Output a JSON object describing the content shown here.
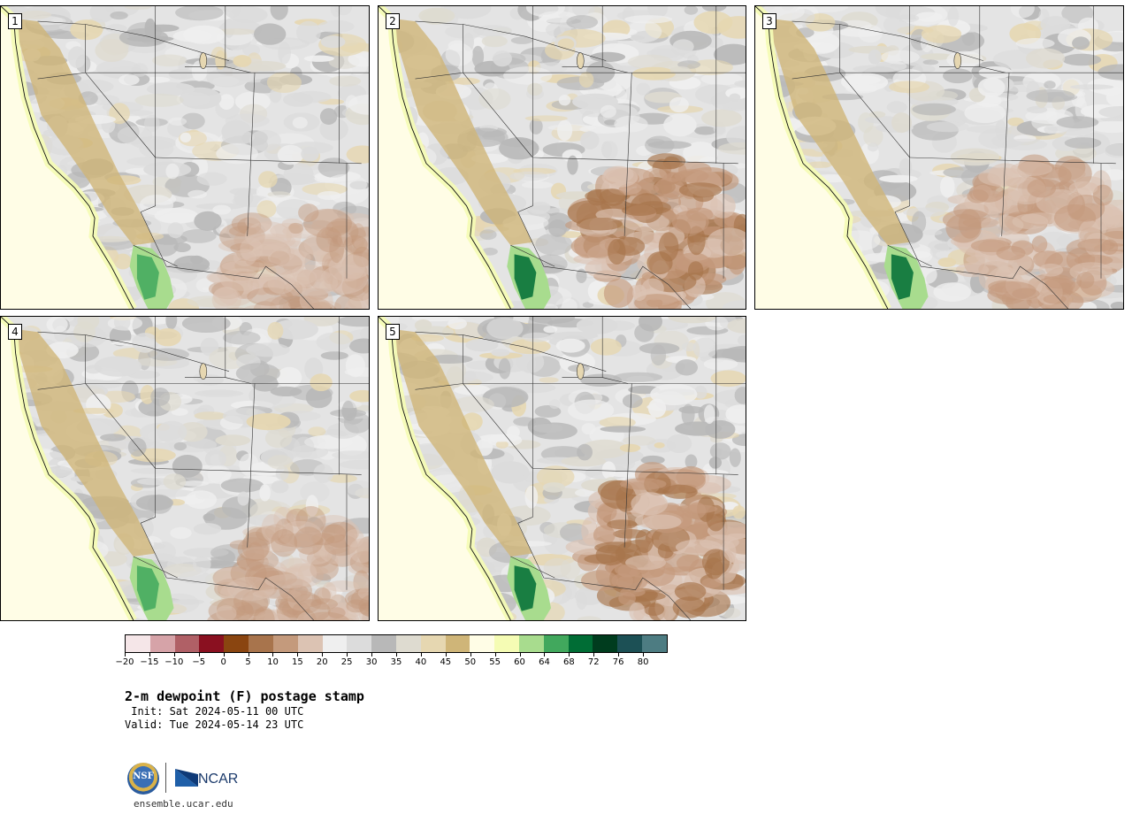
{
  "panels": [
    {
      "number": "1",
      "variant": 1
    },
    {
      "number": "2",
      "variant": 2
    },
    {
      "number": "3",
      "variant": 3
    },
    {
      "number": "4",
      "variant": 4
    },
    {
      "number": "5",
      "variant": 5
    }
  ],
  "colorbar": {
    "colors": [
      "#f5e6e8",
      "#d6a3a8",
      "#b06066",
      "#8a1020",
      "#8a4510",
      "#a8744c",
      "#c49a7c",
      "#dcc3b3",
      "#efefef",
      "#dcdcdc",
      "#b8b8b8",
      "#dedbd0",
      "#e6d7b1",
      "#cfb578",
      "#fffde6",
      "#f5fcb4",
      "#a8dc8e",
      "#41a85d",
      "#006d35",
      "#003c1e",
      "#1c5055",
      "#4d7c82"
    ],
    "ticks": [
      "−20",
      "−15",
      "−10",
      "−5",
      "0",
      "5",
      "10",
      "15",
      "20",
      "25",
      "30",
      "35",
      "40",
      "45",
      "50",
      "55",
      "60",
      "64",
      "68",
      "72",
      "76",
      "80"
    ]
  },
  "title": "2-m dewpoint (F) postage stamp",
  "init": " Init: Sat 2024-05-11 00 UTC",
  "valid": "Valid: Tue 2024-05-14 23 UTC",
  "logos": {
    "nsf": "NSF",
    "ncar": "NCAR"
  },
  "site": "ensemble.ucar.edu"
}
